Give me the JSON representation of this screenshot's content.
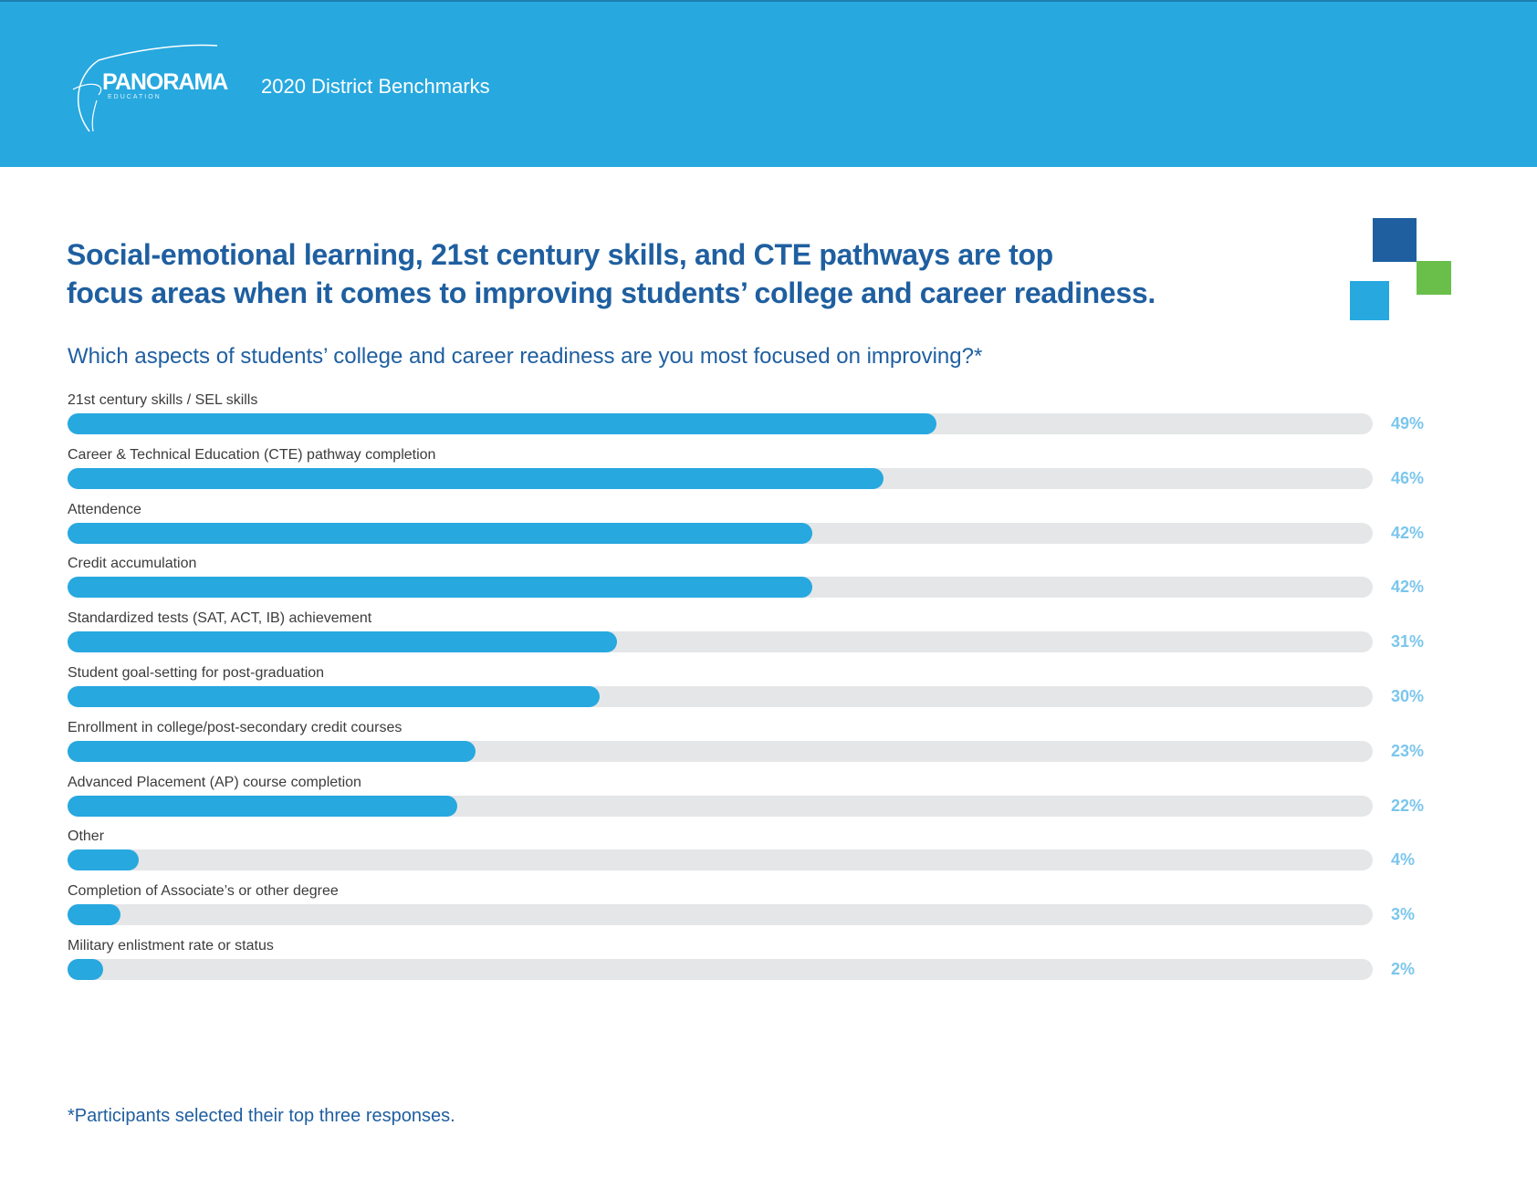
{
  "header": {
    "logo_text": "PANORAMA",
    "logo_subtext": "EDUCATION",
    "title": "2020 District Benchmarks"
  },
  "headline": {
    "line1": "Social-emotional learning, 21st century skills, and CTE pathways are top",
    "line2": "focus areas when it comes to improving students’ college and career readiness."
  },
  "colors": {
    "header_bg": "#27a8df",
    "headline": "#1f5fa0",
    "bar_fill": "#27a8df",
    "bar_track": "#e5e6e8",
    "value_text": "#7bc6ec",
    "square_dark_blue": "#1f5fa0",
    "square_green": "#6abf4b",
    "square_light_blue": "#27a8df"
  },
  "footnote": "*Participants selected their top three responses.",
  "chart_data": {
    "type": "bar",
    "orientation": "horizontal",
    "title": "Which aspects of students’ college and career readiness are you most focused on improving?*",
    "categories": [
      "21st century skills / SEL skills",
      "Career & Technical Education (CTE) pathway completion",
      "Attendence",
      "Credit accumulation",
      "Standardized tests (SAT, ACT, IB) achievement",
      "Student goal-setting for post-graduation",
      "Enrollment in college/post-secondary credit courses",
      "Advanced Placement (AP) course completion",
      "Other",
      "Completion of Associate’s or other degree",
      "Military enlistment rate or status"
    ],
    "values": [
      49,
      46,
      42,
      42,
      31,
      30,
      23,
      22,
      4,
      3,
      2
    ],
    "value_labels": [
      "49%",
      "46%",
      "42%",
      "42%",
      "31%",
      "30%",
      "23%",
      "22%",
      "4%",
      "3%",
      "2%"
    ],
    "xlim": [
      0,
      100
    ],
    "grid": false
  }
}
